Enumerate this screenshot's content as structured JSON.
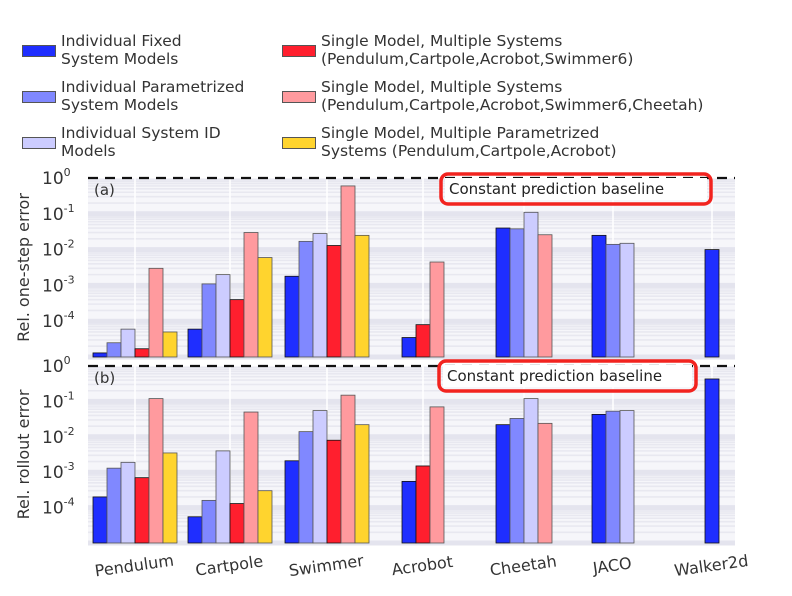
{
  "chart_data": {
    "type": "bar",
    "title": "",
    "yscale": "log",
    "categories": [
      "Pendulum",
      "Cartpole",
      "Swimmer",
      "Acrobot",
      "Cheetah",
      "JACO",
      "Walker2d"
    ],
    "series_defs": [
      {
        "name": "Individual Fixed System Models",
        "color": "#1f2eff"
      },
      {
        "name": "Individual Parametrized System Models",
        "color": "#8088ff"
      },
      {
        "name": "Individual System ID Models",
        "color": "#ccccff"
      },
      {
        "name": "Single Model, Multiple Systems (Pendulum,Cartpole,Acrobot,Swimmer6)",
        "color": "#ff1f2e"
      },
      {
        "name": "Single Model, Multiple Systems (Pendulum,Cartpole,Acrobot,Swimmer6,Cheetah)",
        "color": "#ff9a9e"
      },
      {
        "name": "Single Model, Multiple Parametrized Systems (Pendulum,Cartpole,Acrobot)",
        "color": "#ffd42e"
      }
    ],
    "legend": {
      "placement": "top",
      "entries": [
        {
          "label": "Individual Fixed\nSystem Models",
          "color": "#1f2eff"
        },
        {
          "label": "Individual Parametrized\nSystem Models",
          "color": "#8088ff"
        },
        {
          "label": "Individual System ID\nModels",
          "color": "#ccccff"
        },
        {
          "label": "Single Model, Multiple Systems\n(Pendulum,Cartpole,Acrobot,Swimmer6)",
          "color": "#ff1f2e"
        },
        {
          "label": "Single Model, Multiple Systems\n(Pendulum,Cartpole,Acrobot,Swimmer6,Cheetah)",
          "color": "#ff9a9e"
        },
        {
          "label": "Single Model, Multiple Parametrized\nSystems (Pendulum,Cartpole,Acrobot)",
          "color": "#ffd42e"
        }
      ]
    },
    "panels": [
      {
        "tag": "(a)",
        "ylabel": "Rel. one-step error",
        "ylim": [
          1e-05,
          1
        ],
        "yticks": [
          {
            "value": 1,
            "base": "10",
            "exp": "0"
          },
          {
            "value": 0.1,
            "base": "10",
            "exp": "-1"
          },
          {
            "value": 0.01,
            "base": "10",
            "exp": "-2"
          },
          {
            "value": 0.001,
            "base": "10",
            "exp": "-3"
          },
          {
            "value": 0.0001,
            "base": "10",
            "exp": "-4"
          }
        ],
        "baseline_value": 1,
        "baseline_label": "Constant prediction baseline",
        "groups": [
          {
            "category": "Pendulum",
            "values": [
              1.3e-05,
              2.5e-05,
              6e-05,
              1.7e-05,
              0.003,
              5e-05
            ]
          },
          {
            "category": "Cartpole",
            "values": [
              6e-05,
              0.0011,
              0.002,
              0.0004,
              0.03,
              0.006
            ]
          },
          {
            "category": "Swimmer",
            "values": [
              0.0018,
              0.017,
              0.028,
              0.013,
              0.6,
              0.025
            ]
          },
          {
            "category": "Acrobot",
            "values": [
              3.5e-05,
              null,
              null,
              8e-05,
              0.0045,
              null
            ]
          },
          {
            "category": "Cheetah",
            "values": [
              0.04,
              0.038,
              0.11,
              null,
              0.026,
              null
            ]
          },
          {
            "category": "JACO",
            "values": [
              0.025,
              0.014,
              0.015,
              null,
              null,
              null
            ]
          },
          {
            "category": "Walker2d",
            "values": [
              0.01,
              null,
              null,
              null,
              null,
              null
            ]
          }
        ]
      },
      {
        "tag": "(b)",
        "ylabel": "Rel. rollout error",
        "ylim": [
          1e-05,
          1
        ],
        "yticks": [
          {
            "value": 1,
            "base": "10",
            "exp": "0"
          },
          {
            "value": 0.1,
            "base": "10",
            "exp": "-1"
          },
          {
            "value": 0.01,
            "base": "10",
            "exp": "-2"
          },
          {
            "value": 0.001,
            "base": "10",
            "exp": "-3"
          },
          {
            "value": 0.0001,
            "base": "10",
            "exp": "-4"
          }
        ],
        "baseline_value": 1,
        "baseline_label": "Constant prediction baseline",
        "groups": [
          {
            "category": "Pendulum",
            "values": [
              0.0002,
              0.0013,
              0.0019,
              0.0007,
              0.12,
              0.0035
            ]
          },
          {
            "category": "Cartpole",
            "values": [
              5.5e-05,
              0.00016,
              0.004,
              0.00013,
              0.05,
              0.0003
            ]
          },
          {
            "category": "Swimmer",
            "values": [
              0.0021,
              0.014,
              0.055,
              0.008,
              0.15,
              0.022
            ]
          },
          {
            "category": "Acrobot",
            "values": [
              0.00055,
              null,
              null,
              0.0015,
              0.07,
              null
            ]
          },
          {
            "category": "Cheetah",
            "values": [
              0.022,
              0.033,
              0.12,
              null,
              0.024,
              null
            ]
          },
          {
            "category": "JACO",
            "values": [
              0.043,
              0.053,
              0.055,
              null,
              null,
              null
            ]
          },
          {
            "category": "Walker2d",
            "values": [
              0.43,
              null,
              null,
              null,
              null,
              null
            ]
          }
        ]
      }
    ],
    "grid": true,
    "highlight_color": "#f2231f"
  }
}
